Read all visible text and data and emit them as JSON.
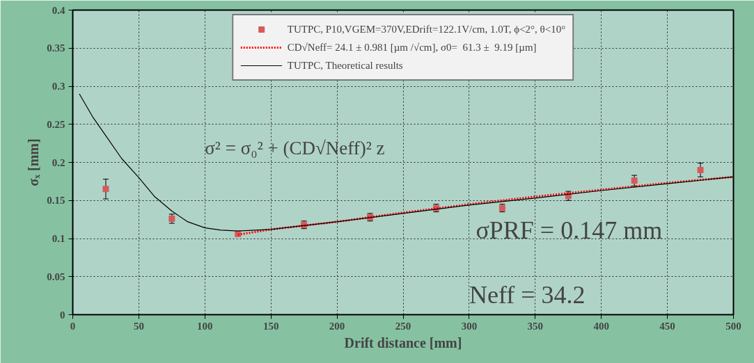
{
  "chart_data": {
    "type": "scatter",
    "xlabel": "Drift distance [mm]",
    "ylabel": "σₓ [mm]",
    "xlim": [
      0,
      500
    ],
    "xticks": [
      0,
      50,
      100,
      150,
      200,
      250,
      300,
      350,
      400,
      450,
      500
    ],
    "ylim": [
      0,
      0.4
    ],
    "yticks": [
      0,
      0.05,
      0.1,
      0.15,
      0.2,
      0.25,
      0.3,
      0.35,
      0.4
    ],
    "grid": true,
    "legend": "top",
    "series": [
      {
        "name": "TUTPC, P10,VGEM=370V,EDrift=122.1V/cm, 1.0T, ϕ<2°, θ<10°",
        "marker": "square",
        "color": "#d65a5a",
        "x": [
          25,
          75,
          125,
          175,
          225,
          275,
          325,
          375,
          425,
          475
        ],
        "values": [
          0.165,
          0.126,
          0.106,
          0.118,
          0.128,
          0.14,
          0.14,
          0.156,
          0.176,
          0.19
        ],
        "errors": [
          0.013,
          0.006,
          null,
          0.005,
          0.005,
          0.005,
          0.005,
          0.006,
          0.007,
          0.009
        ]
      },
      {
        "name": "CD√Neff= 24.1 ± 0.981 [µm /√cm], σ0=  61.3 ±  9.19 [µm]",
        "type": "line",
        "line_style": "dotted",
        "color": "#ff0000",
        "x": [
          125,
          150,
          200,
          250,
          300,
          350,
          400,
          450,
          500
        ],
        "values": [
          0.105,
          0.112,
          0.122,
          0.134,
          0.145,
          0.155,
          0.164,
          0.173,
          0.181
        ]
      },
      {
        "name": "TUTPC, Theoretical results",
        "type": "line",
        "line_style": "solid",
        "color": "#000000",
        "x": [
          5,
          15,
          25,
          37,
          50,
          62,
          75,
          87,
          100,
          112,
          125,
          150,
          200,
          250,
          300,
          350,
          400,
          450,
          500
        ],
        "values": [
          0.29,
          0.26,
          0.235,
          0.205,
          0.18,
          0.155,
          0.136,
          0.122,
          0.114,
          0.111,
          0.11,
          0.112,
          0.122,
          0.133,
          0.144,
          0.153,
          0.163,
          0.172,
          0.181
        ]
      }
    ],
    "annotations": [
      "σ² = σ₀² + (CD√Neff)² z",
      "σPRF = 0.147 mm",
      "Neff = 34.2"
    ]
  }
}
